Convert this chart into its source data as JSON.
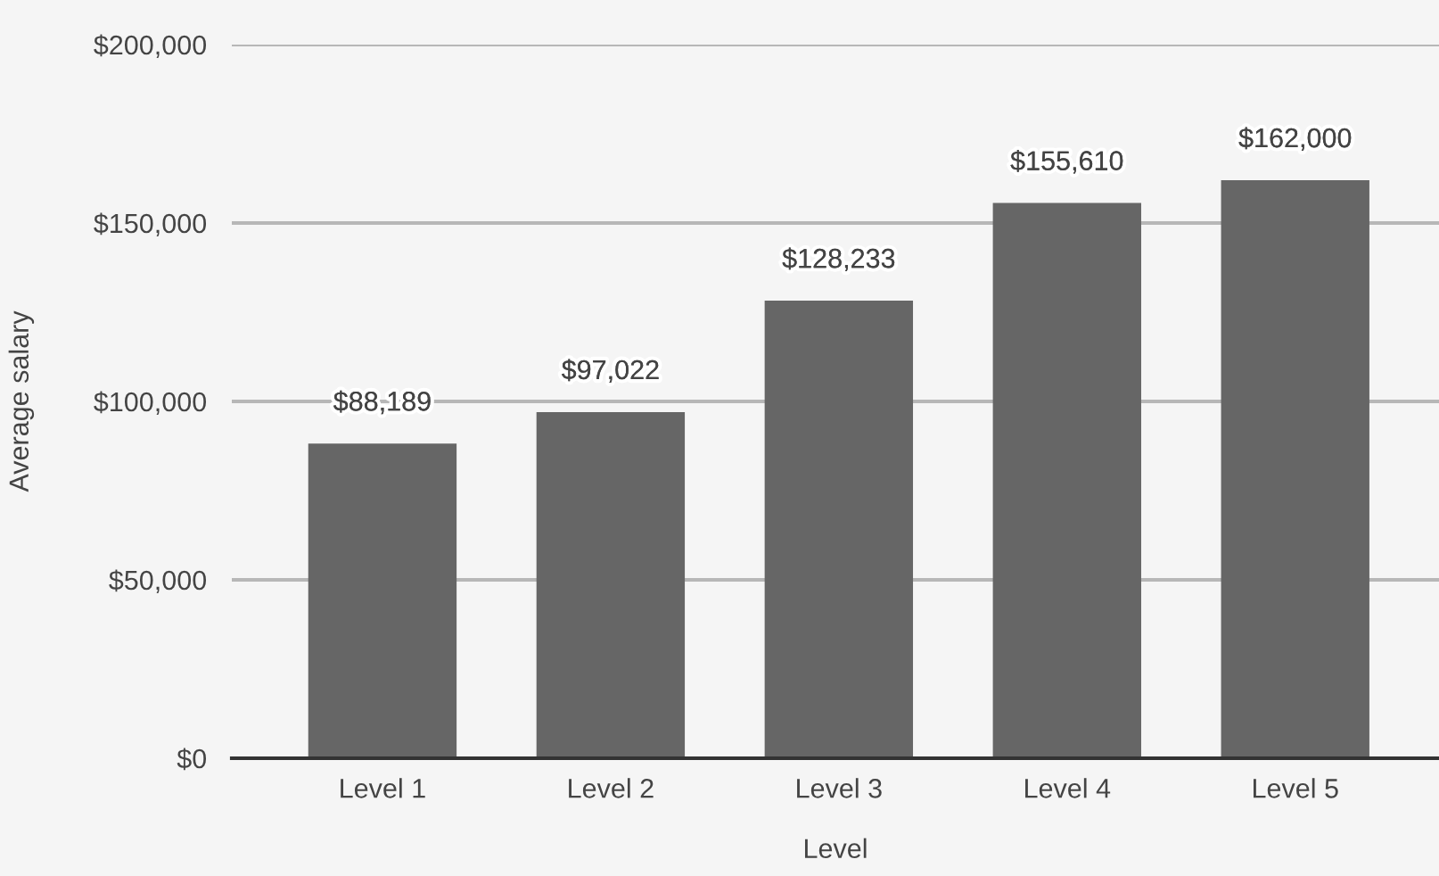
{
  "chart_data": {
    "type": "bar",
    "xlabel": "Level",
    "ylabel": "Average salary",
    "categories": [
      "Level 1",
      "Level 2",
      "Level 3",
      "Level 4",
      "Level 5"
    ],
    "values": [
      88189,
      97022,
      128233,
      155610,
      162000
    ],
    "value_labels": [
      "$88,189",
      "$97,022",
      "$128,233",
      "$155,610",
      "$162,000"
    ],
    "color": "#666666",
    "ylim": [
      0,
      200000
    ],
    "yticks": [
      {
        "value": 0,
        "label": "$0"
      },
      {
        "value": 50000,
        "label": "$50,000"
      },
      {
        "value": 100000,
        "label": "$100,000"
      },
      {
        "value": 150000,
        "label": "$150,000"
      },
      {
        "value": 200000,
        "label": "$200,000"
      }
    ],
    "grid": "y"
  }
}
